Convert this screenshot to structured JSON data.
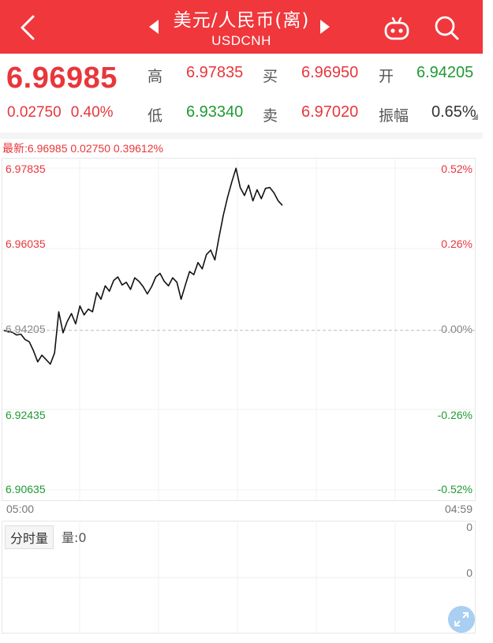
{
  "header": {
    "title": "美元/人民币(离)",
    "subtitle": "USDCNH",
    "colors": {
      "background": "#f0373c",
      "text": "#ffffff"
    },
    "icons": [
      "back-icon",
      "prev-arrow-icon",
      "next-arrow-icon",
      "robot-icon",
      "search-icon"
    ]
  },
  "quote": {
    "price": "6.96985",
    "change": "0.02750",
    "change_pct": "0.40%",
    "high_label": "高",
    "high": "6.97835",
    "low_label": "低",
    "low": "6.93340",
    "bid_label": "买",
    "bid": "6.96950",
    "ask_label": "卖",
    "ask": "6.97020",
    "open_label": "开",
    "open": "6.94205",
    "amp_label": "振幅",
    "amplitude": "0.65%",
    "colors": {
      "up": "#e8363b",
      "down": "#1f9a33",
      "neutral": "#333333"
    }
  },
  "latest_line": "最新:6.96985  0.02750  0.39612%",
  "chart_data": {
    "type": "line",
    "title": "",
    "y_left_ticks": [
      "6.97835",
      "6.96035",
      "6.94205",
      "6.92435",
      "6.90635"
    ],
    "y_right_ticks": [
      "0.52%",
      "0.26%",
      "0.00%",
      "-0.26%",
      "-0.52%"
    ],
    "ylim": [
      6.90635,
      6.97835
    ],
    "baseline": 6.94205,
    "x_start": "05:00",
    "x_end": "04:59",
    "grid": true,
    "series": [
      {
        "values": [
          6.942,
          6.9418,
          6.9416,
          6.941,
          6.9412,
          6.94,
          6.9395,
          6.9375,
          6.935,
          6.9365,
          6.9355,
          6.9345,
          6.937,
          6.9462,
          6.9415,
          6.944,
          6.9458,
          6.9435,
          6.9475,
          6.9455,
          6.9468,
          6.9462,
          6.9505,
          6.949,
          6.952,
          6.9508,
          6.9532,
          6.954,
          6.9522,
          6.9528,
          6.9512,
          6.9538,
          6.953,
          6.9518,
          6.9502,
          6.9518,
          6.954,
          6.9548,
          6.953,
          6.952,
          6.9538,
          6.9528,
          6.949,
          6.9522,
          6.9552,
          6.9545,
          6.9572,
          6.9558,
          6.959,
          6.96,
          6.9578,
          6.963,
          6.9678,
          6.9718,
          6.9752,
          6.9783,
          6.974,
          6.9722,
          6.9745,
          6.971,
          6.9735,
          6.9715,
          6.9738,
          6.974,
          6.9728,
          6.971,
          6.97
        ]
      }
    ]
  },
  "volume": {
    "tab_label": "分时量",
    "info": "量:0",
    "y_top": "0",
    "y_mid": "0"
  }
}
